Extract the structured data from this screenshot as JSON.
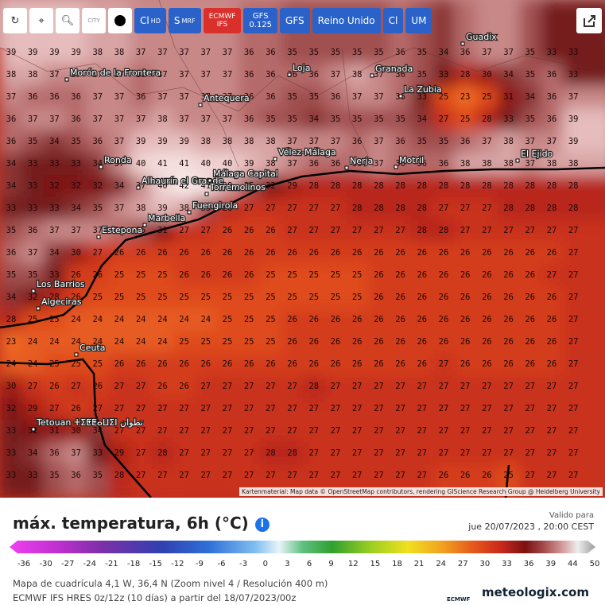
{
  "toolbar": {
    "city": "CITY",
    "buttons": [
      {
        "label": "Cl",
        "sub": "HD"
      },
      {
        "label": "S",
        "sub": "MRF"
      },
      {
        "label": "ECMWF",
        "sub": "IFS"
      },
      {
        "label": "GFS",
        "sub": "0.125"
      },
      {
        "label": "GFS"
      },
      {
        "label": "Reino Unido"
      },
      {
        "label": "Cl"
      },
      {
        "label": "UM"
      }
    ]
  },
  "map": {
    "grid": [
      [
        39,
        39,
        39,
        39,
        38,
        38,
        37,
        37,
        37,
        37,
        37,
        36,
        36,
        35,
        35,
        35,
        35,
        35,
        36,
        35,
        34,
        36,
        37,
        37,
        35,
        33,
        33
      ],
      [
        38,
        38,
        37,
        37,
        37,
        37,
        36,
        37,
        37,
        37,
        37,
        36,
        36,
        36,
        36,
        37,
        38,
        37,
        36,
        35,
        33,
        28,
        30,
        34,
        35,
        36,
        33
      ],
      [
        37,
        36,
        36,
        36,
        37,
        37,
        36,
        37,
        37,
        37,
        37,
        36,
        36,
        35,
        35,
        36,
        37,
        37,
        36,
        33,
        25,
        23,
        25,
        31,
        34,
        36,
        37
      ],
      [
        36,
        37,
        37,
        36,
        37,
        37,
        37,
        38,
        37,
        37,
        37,
        36,
        35,
        35,
        34,
        35,
        35,
        35,
        35,
        34,
        27,
        25,
        28,
        33,
        35,
        36,
        39
      ],
      [
        36,
        35,
        34,
        35,
        36,
        37,
        39,
        39,
        39,
        38,
        38,
        38,
        38,
        37,
        37,
        37,
        36,
        37,
        36,
        35,
        35,
        36,
        37,
        38,
        37,
        37,
        39
      ],
      [
        34,
        33,
        33,
        33,
        34,
        37,
        40,
        41,
        41,
        40,
        40,
        39,
        38,
        37,
        36,
        36,
        36,
        37,
        36,
        36,
        36,
        38,
        38,
        38,
        37,
        38,
        38
      ],
      [
        34,
        33,
        32,
        32,
        32,
        34,
        37,
        40,
        42,
        41,
        38,
        35,
        32,
        29,
        28,
        28,
        28,
        28,
        28,
        28,
        28,
        28,
        28,
        28,
        28,
        28,
        28
      ],
      [
        33,
        33,
        33,
        34,
        35,
        37,
        38,
        39,
        38,
        35,
        28,
        27,
        27,
        27,
        27,
        27,
        28,
        28,
        28,
        28,
        27,
        27,
        27,
        28,
        28,
        28,
        28
      ],
      [
        35,
        36,
        37,
        37,
        37,
        36,
        35,
        31,
        27,
        27,
        26,
        26,
        26,
        27,
        27,
        27,
        27,
        27,
        27,
        28,
        28,
        27,
        27,
        27,
        27,
        27,
        27
      ],
      [
        36,
        37,
        34,
        30,
        27,
        26,
        26,
        26,
        26,
        26,
        26,
        26,
        26,
        26,
        26,
        26,
        26,
        26,
        26,
        26,
        26,
        26,
        26,
        26,
        26,
        26,
        27
      ],
      [
        35,
        35,
        33,
        26,
        26,
        25,
        25,
        25,
        26,
        26,
        26,
        26,
        25,
        25,
        25,
        25,
        25,
        26,
        26,
        26,
        26,
        26,
        26,
        26,
        26,
        27,
        27
      ],
      [
        34,
        32,
        28,
        26,
        25,
        25,
        25,
        25,
        25,
        25,
        25,
        25,
        25,
        25,
        25,
        25,
        25,
        26,
        26,
        26,
        26,
        26,
        26,
        26,
        26,
        26,
        27
      ],
      [
        28,
        25,
        25,
        24,
        24,
        24,
        24,
        24,
        24,
        24,
        25,
        25,
        25,
        26,
        26,
        26,
        26,
        26,
        26,
        26,
        26,
        26,
        26,
        26,
        26,
        26,
        27
      ],
      [
        23,
        24,
        24,
        24,
        24,
        24,
        24,
        24,
        25,
        25,
        25,
        25,
        25,
        26,
        26,
        26,
        26,
        26,
        26,
        26,
        26,
        26,
        26,
        26,
        26,
        26,
        27
      ],
      [
        24,
        24,
        25,
        25,
        25,
        26,
        26,
        26,
        26,
        26,
        26,
        26,
        26,
        26,
        26,
        26,
        26,
        26,
        26,
        26,
        27,
        26,
        26,
        26,
        26,
        26,
        27
      ],
      [
        30,
        27,
        26,
        27,
        26,
        27,
        27,
        26,
        26,
        27,
        27,
        27,
        27,
        27,
        28,
        27,
        27,
        27,
        27,
        27,
        27,
        27,
        27,
        27,
        27,
        27,
        27
      ],
      [
        32,
        29,
        27,
        26,
        27,
        27,
        27,
        27,
        27,
        27,
        27,
        27,
        27,
        27,
        27,
        27,
        27,
        27,
        27,
        27,
        27,
        27,
        27,
        27,
        27,
        27,
        27
      ],
      [
        33,
        32,
        31,
        30,
        34,
        27,
        27,
        27,
        27,
        27,
        27,
        27,
        27,
        27,
        27,
        27,
        27,
        27,
        27,
        27,
        27,
        27,
        27,
        27,
        27,
        27,
        27
      ],
      [
        33,
        34,
        36,
        37,
        33,
        29,
        27,
        28,
        27,
        27,
        27,
        27,
        28,
        28,
        27,
        27,
        27,
        27,
        27,
        27,
        27,
        27,
        27,
        27,
        27,
        27,
        27
      ],
      [
        33,
        33,
        35,
        36,
        35,
        28,
        27,
        27,
        27,
        27,
        27,
        27,
        27,
        27,
        27,
        27,
        27,
        27,
        27,
        27,
        26,
        26,
        26,
        25,
        27,
        27,
        27
      ]
    ],
    "places": [
      "Guadix",
      "Granada",
      "La Zubia",
      "Loja",
      "Morón de la Frontera",
      "Antequera",
      "Ronda",
      "Vélez-Málaga",
      "Nerja",
      "Motril",
      "El Ejido",
      "Alhaurín el Grande",
      "Málaga Capital",
      "Torremolinos",
      "Fuengirola",
      "Marbella",
      "Estepona",
      "Los Barrios",
      "Algeciras",
      "Ceuta",
      "Tetouan ⵜⵉⵟⵟⴰⵡⵉⵏ تطوان"
    ],
    "attribution": "Kartenmaterial: Map data © OpenStreetMap contributors, rendering GIScience Research Group @ Heidelberg University"
  },
  "info": {
    "title": "máx. temperatura, 6h (°C)",
    "valid_label": "Valido para",
    "valid_time": "jue 20/07/2023 , 20:00 CEST",
    "legend_ticks": [
      -36,
      -30,
      -27,
      -24,
      -21,
      -18,
      -15,
      -12,
      -9,
      -6,
      -3,
      0,
      3,
      6,
      9,
      12,
      15,
      18,
      21,
      24,
      27,
      30,
      33,
      36,
      39,
      44,
      50
    ],
    "footer": [
      "Mapa de cuadrícula 4,1 W, 36,4 N (Zoom nivel 4 / Resolución 400 m)",
      "ECMWF IFS HRES 0z/12z (10 días) a partir del 18/07/2023/00z"
    ],
    "ecmwf": "ECMWF",
    "brand": "meteologix.com"
  }
}
